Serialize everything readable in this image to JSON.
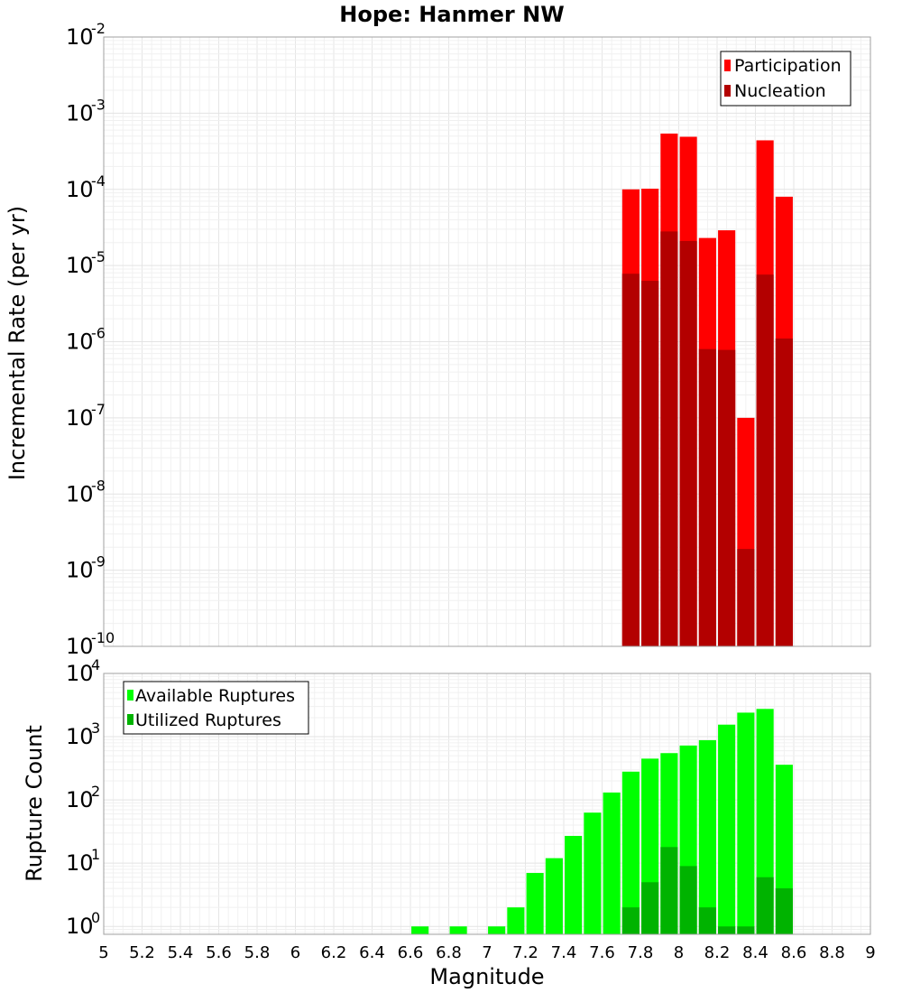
{
  "chart_data": [
    {
      "type": "bar",
      "title": "Hope: Hanmer NW",
      "xlabel": "",
      "ylabel": "Incremental Rate (per yr)",
      "xlim": [
        5,
        9
      ],
      "ylim": [
        1e-10,
        0.01
      ],
      "yscale": "log",
      "y_tick_exponents": [
        "-2",
        "-3",
        "-4",
        "-5",
        "-6",
        "-7",
        "-8",
        "-9",
        "-10"
      ],
      "y_tick_base": "10",
      "grid": true,
      "legend_position": "top-right",
      "bar_width": 0.09,
      "series": [
        {
          "name": "Participation",
          "color": "#ff0000",
          "x": [
            7.75,
            7.85,
            7.95,
            8.05,
            8.15,
            8.25,
            8.35,
            8.45,
            8.55
          ],
          "values": [
            0.0001,
            0.000102,
            0.00054,
            0.00049,
            2.3e-05,
            2.9e-05,
            1e-07,
            0.00044,
            8e-05
          ]
        },
        {
          "name": "Nucleation",
          "color": "#b30000",
          "x": [
            7.75,
            7.85,
            7.95,
            8.05,
            8.15,
            8.25,
            8.35,
            8.45,
            8.55
          ],
          "values": [
            7.8e-06,
            6.3e-06,
            2.8e-05,
            2.1e-05,
            8e-07,
            7.8e-07,
            1.9e-09,
            7.6e-06,
            1.1e-06
          ]
        }
      ]
    },
    {
      "type": "bar",
      "title": "",
      "xlabel": "Magnitude",
      "ylabel": "Rupture Count",
      "xlim": [
        5,
        9
      ],
      "ylim": [
        0.75,
        10000
      ],
      "yscale": "log",
      "y_tick_exponents": [
        "4",
        "3",
        "2",
        "1",
        "0"
      ],
      "y_tick_base": "10",
      "x_ticks": [
        "5",
        "5.2",
        "5.4",
        "5.6",
        "5.8",
        "6",
        "6.2",
        "6.4",
        "6.6",
        "6.8",
        "7",
        "7.2",
        "7.4",
        "7.6",
        "7.8",
        "8",
        "8.2",
        "8.4",
        "8.6",
        "8.8",
        "9"
      ],
      "grid": true,
      "legend_position": "top-left",
      "bar_width": 0.09,
      "series": [
        {
          "name": "Available Ruptures",
          "color": "#00ff00",
          "x": [
            6.65,
            6.85,
            7.05,
            7.15,
            7.25,
            7.35,
            7.45,
            7.55,
            7.65,
            7.75,
            7.85,
            7.95,
            8.05,
            8.15,
            8.25,
            8.35,
            8.45,
            8.55
          ],
          "values": [
            1,
            1,
            1,
            2,
            7,
            12,
            27,
            63,
            131,
            280,
            450,
            550,
            725,
            880,
            1550,
            2400,
            2750,
            360
          ]
        },
        {
          "name": "Utilized Ruptures",
          "color": "#00b300",
          "x": [
            7.75,
            7.85,
            7.95,
            8.05,
            8.15,
            8.25,
            8.35,
            8.45,
            8.55
          ],
          "values": [
            2,
            5,
            18,
            9,
            2,
            1,
            1,
            6,
            4
          ]
        }
      ]
    }
  ]
}
